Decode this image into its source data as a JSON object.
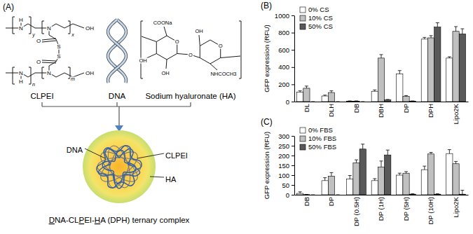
{
  "diagram": {
    "label": "(A)",
    "clpei": {
      "name": "CLPEI",
      "atoms": [
        "H",
        "N",
        "N",
        "OH",
        "O",
        "S",
        "S",
        "O",
        "H",
        "N",
        "N",
        "OH"
      ],
      "repeat_labels": [
        "y",
        "x",
        "n",
        "m"
      ]
    },
    "dna": {
      "name": "DNA"
    },
    "ha": {
      "name": "Sodium hyaluronate (HA)",
      "atoms": [
        "COONa",
        "O",
        "OH",
        "OH",
        "O",
        "O",
        "OH",
        "NHCOCH3"
      ]
    },
    "complex": {
      "labels": [
        "DNA",
        "CLPEI",
        "HA"
      ],
      "caption": [
        {
          "text": "D",
          "underline": true
        },
        {
          "text": "NA-CL"
        },
        {
          "text": "P",
          "underline": true
        },
        {
          "text": "EI-"
        },
        {
          "text": "H",
          "underline": true
        },
        {
          "text": "A (DPH) ternary complex"
        }
      ]
    }
  },
  "chart_data": [
    {
      "type": "bar",
      "title": "(B)",
      "ylabel": "GFP expression (RFU)",
      "categories": [
        "DL",
        "DLH",
        "DB",
        "DBH",
        "DP",
        "DPH",
        "Lipo2K"
      ],
      "series": [
        {
          "name": "0% CS",
          "color": "#ffffff",
          "values": [
            110,
            65,
            5,
            120,
            320,
            725,
            505
          ],
          "errors": [
            15,
            10,
            3,
            15,
            40,
            20,
            15
          ]
        },
        {
          "name": "10% CS",
          "color": "#c0c0c0",
          "values": [
            155,
            105,
            5,
            505,
            60,
            740,
            815
          ],
          "errors": [
            25,
            20,
            3,
            40,
            10,
            25,
            55
          ]
        },
        {
          "name": "50% CS",
          "color": "#595959",
          "values": [
            0,
            0,
            0,
            20,
            5,
            865,
            785
          ],
          "errors": [
            0,
            0,
            0,
            5,
            3,
            50,
            60
          ]
        }
      ],
      "ylim": [
        0,
        1000
      ],
      "yticks": [
        0,
        200,
        400,
        600,
        800,
        1000
      ],
      "legend": "top-left"
    },
    {
      "type": "bar",
      "title": "(C)",
      "ylabel": "GFP expression (RFU)",
      "categories": [
        "DB",
        "DP",
        "DP (0.5H)",
        "DP (1H)",
        "DP (5H)",
        "DP (10H)",
        "Lipo2K"
      ],
      "series": [
        {
          "name": "0% FBS",
          "color": "#ffffff",
          "values": [
            7,
            72,
            80,
            72,
            100,
            128,
            210
          ],
          "errors": [
            8,
            15,
            18,
            10,
            10,
            18,
            20
          ]
        },
        {
          "name": "10% FBS",
          "color": "#c0c0c0",
          "values": [
            1,
            95,
            163,
            142,
            110,
            208,
            158
          ],
          "errors": [
            1,
            18,
            15,
            30,
            8,
            8,
            12
          ]
        },
        {
          "name": "50% FBS",
          "color": "#595959",
          "values": [
            0,
            0,
            233,
            203,
            3,
            3,
            3
          ],
          "errors": [
            0,
            0,
            25,
            25,
            2,
            2,
            20
          ]
        }
      ],
      "ylim": [
        0,
        300
      ],
      "yticks": [
        0,
        50,
        100,
        150,
        200,
        250,
        300
      ],
      "legend": "top-left"
    }
  ]
}
